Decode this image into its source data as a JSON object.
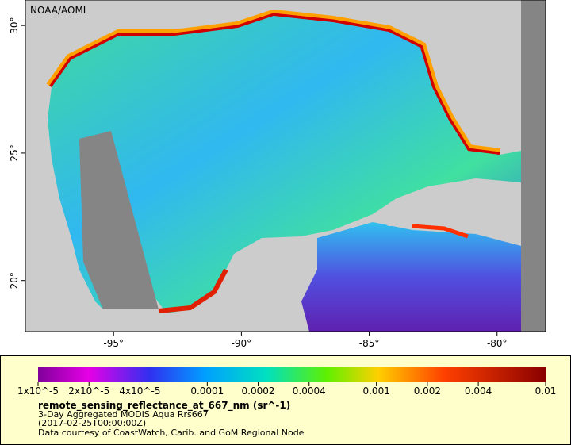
{
  "map": {
    "credit": "NOAA/AOML",
    "lonlim": [
      -98.45,
      -78.1
    ],
    "latlim": [
      18,
      31
    ],
    "lon_ticks": [
      {
        "value": -95,
        "label": "-95°"
      },
      {
        "value": -90,
        "label": "-90°"
      },
      {
        "value": -85,
        "label": "-85°"
      },
      {
        "value": -80,
        "label": "-80°"
      }
    ],
    "lat_ticks": [
      {
        "value": 20,
        "label": "20°"
      },
      {
        "value": 25,
        "label": "25°"
      },
      {
        "value": 30,
        "label": "30°"
      }
    ]
  },
  "colorbar": {
    "log": true,
    "lim": [
      1e-05,
      0.01
    ],
    "ticks": [
      {
        "value": 1e-05,
        "label": "1x10^-5"
      },
      {
        "value": 2e-05,
        "label": "2x10^-5"
      },
      {
        "value": 4e-05,
        "label": "4x10^-5"
      },
      0.0001,
      0.0002,
      0.0004,
      0.001,
      0.002,
      0.004,
      0.01
    ],
    "variable": "remote_sensing_reflectance_at_667_nm (sr^-1)",
    "lines": [
      "3-Day Aggregated MODIS Aqua Rrs667",
      "(2017-02-25T00:00:00Z)",
      "Data courtesy of CoastWatch, Carib. and GoM Regional Node"
    ]
  }
}
